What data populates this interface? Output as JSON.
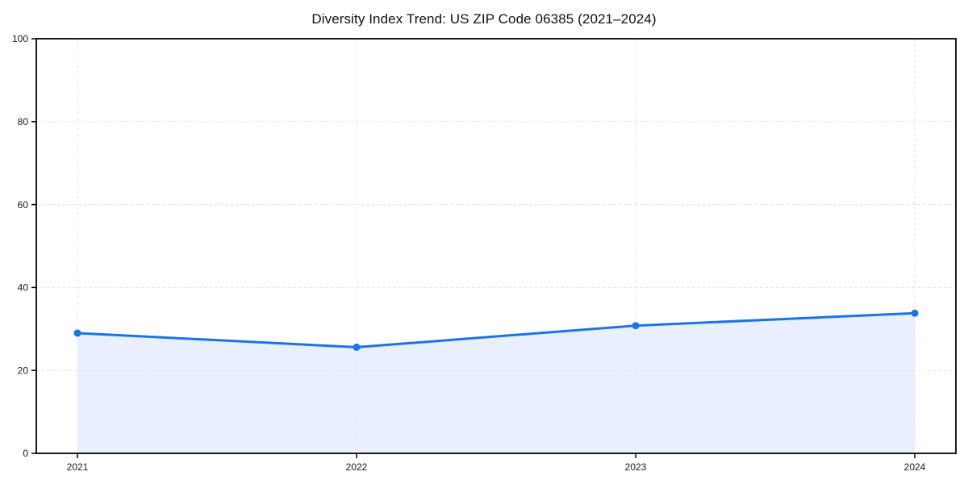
{
  "chart_data": {
    "type": "area",
    "title": "Diversity Index Trend: US ZIP Code 06385 (2021–2024)",
    "xlabel": "",
    "ylabel": "",
    "categories": [
      "2021",
      "2022",
      "2023",
      "2024"
    ],
    "series": [
      {
        "name": "Diversity Index",
        "values": [
          29.0,
          25.6,
          30.8,
          33.8
        ]
      }
    ],
    "ylim": [
      0,
      100
    ],
    "yticks": [
      0,
      20,
      40,
      60,
      80,
      100
    ],
    "grid": "dashed-both-axes",
    "legend": "none",
    "colors": {
      "line": "#1a73e8",
      "marker": "#1a73e8",
      "area_fill": "#e8f0fe",
      "grid": "#e5e5e5",
      "spine": "#000000",
      "tick_text": "#1a1a1a",
      "title_text": "#111111",
      "background": "#ffffff"
    }
  }
}
